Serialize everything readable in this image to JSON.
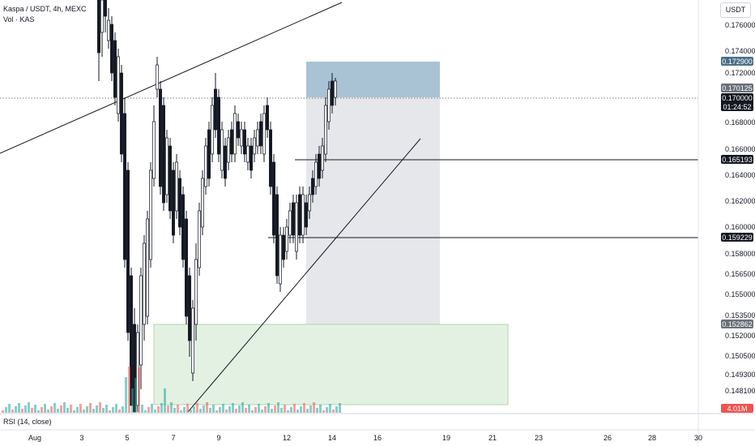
{
  "header": {
    "symbol": "Kaspa / USDT, 4h, MEXC",
    "volume_label": "Vol · KAS"
  },
  "scale": {
    "unit": "USDT"
  },
  "price_axis": {
    "ticks": [
      "0.176000",
      "0.174000",
      "0.172000",
      "0.168000",
      "0.166000",
      "0.164000",
      "0.162000",
      "0.160000",
      "0.158000",
      "0.156500",
      "0.155000",
      "0.153500",
      "0.152000",
      "0.150500",
      "0.149300",
      "0.148100"
    ]
  },
  "price_tags": [
    {
      "label": "0.172900",
      "color": "#4a6e8a",
      "text_color": "#ffffff"
    },
    {
      "label": "0.170125",
      "color": "#6a6f7a",
      "text_color": "#ffffff"
    },
    {
      "label": "0.170000",
      "color": "#131722",
      "text_color": "#ffffff",
      "sub": "01:24:52"
    },
    {
      "label": "0.165193",
      "color": "#131722",
      "text_color": "#ffffff"
    },
    {
      "label": "0.159229",
      "color": "#131722",
      "text_color": "#ffffff"
    },
    {
      "label": "0.152862",
      "color": "#6a6f7a",
      "text_color": "#ffffff"
    },
    {
      "label": "4.01M",
      "color": "#ef5350",
      "text_color": "#ffffff"
    }
  ],
  "time_axis": {
    "ticks": [
      "Aug",
      "3",
      "5",
      "7",
      "9",
      "12",
      "14",
      "16",
      "19",
      "21",
      "23",
      "26",
      "28",
      "30"
    ]
  },
  "indicator": {
    "label": "RSI (14, close)"
  },
  "colors": {
    "up_volume": "#26a69a",
    "down_volume": "#ef5350",
    "target_zone": "#9db7cb",
    "stop_zone": "#d9ecd9",
    "position_range": "#e1e3e8"
  }
}
